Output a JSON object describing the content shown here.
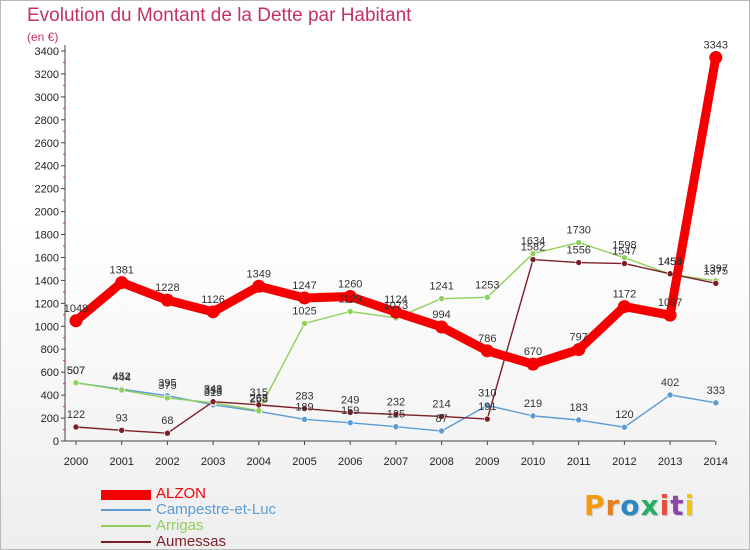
{
  "header": {
    "title": "Evolution du Montant de la Dette par Habitant",
    "subtitle": "(en €)"
  },
  "logo": {
    "text": "Proxiti",
    "letter_colors": [
      "#f39c12",
      "#e67e22",
      "#2e86c1",
      "#27ae60",
      "#e74c3c",
      "#8e44ad",
      "#f1c40f"
    ]
  },
  "chart_data": {
    "type": "line",
    "title": "Evolution du Montant de la Dette par Habitant",
    "subtitle": "(en €)",
    "x": [
      "2000",
      "2001",
      "2002",
      "2003",
      "2004",
      "2005",
      "2006",
      "2007",
      "2008",
      "2009",
      "2010",
      "2011",
      "2012",
      "2013",
      "2014"
    ],
    "ylim": [
      0,
      3400
    ],
    "yticks": [
      0,
      200,
      400,
      600,
      800,
      1000,
      1200,
      1400,
      1600,
      1800,
      2000,
      2200,
      2400,
      2600,
      2800,
      3000,
      3200,
      3400
    ],
    "grid": false,
    "legend_position": "bottom-left",
    "series": [
      {
        "name": "Campestre-et-Luc",
        "color": "#5b9bd5",
        "values": [
          507,
          452,
          395,
          315,
          258,
          189,
          159,
          125,
          87,
          310,
          219,
          183,
          120,
          402,
          333
        ],
        "labels": [
          "507",
          "452",
          "395",
          "315",
          "258",
          "189",
          "159",
          "125",
          "87",
          "310",
          "219",
          "183",
          "120",
          "402",
          "333"
        ]
      },
      {
        "name": "Arrigas",
        "color": "#8fd05a",
        "values": [
          507,
          444,
          375,
          333,
          265,
          1025,
          1129,
          1073,
          1241,
          1253,
          1634,
          1730,
          1598,
          1454,
          1397
        ],
        "labels": [
          "507",
          "444",
          "375",
          "333",
          "265",
          "1025",
          "1129",
          "1073",
          "1241",
          "1253",
          "1634",
          "1730",
          "1598",
          "1454",
          "1397"
        ]
      },
      {
        "name": "Aumessas",
        "color": "#7b1f26",
        "values": [
          122,
          93,
          68,
          343,
          315,
          283,
          249,
          232,
          214,
          191,
          1582,
          1556,
          1547,
          1458,
          1375
        ],
        "labels": [
          "122",
          "93",
          "68",
          "343",
          "315",
          "283",
          "249",
          "232",
          "214",
          "191",
          "1582",
          "1556",
          "1547",
          "1458",
          "1375"
        ]
      },
      {
        "name": "ALZON",
        "color": "#f40000",
        "values": [
          1048,
          1381,
          1228,
          1126,
          1349,
          1247,
          1260,
          1124,
          994,
          786,
          670,
          797,
          1172,
          1097,
          3343
        ],
        "labels": [
          "1048",
          "1381",
          "1228",
          "1126",
          "1349",
          "1247",
          "1260",
          "1124",
          "994",
          "786",
          "670",
          "797",
          "1172",
          "1097",
          "3343"
        ]
      }
    ]
  },
  "legend": {
    "items": [
      {
        "label": "ALZON",
        "color": "#f40000"
      },
      {
        "label": "Campestre-et-Luc",
        "color": "#5b9bd5"
      },
      {
        "label": "Arrigas",
        "color": "#8fd05a"
      },
      {
        "label": "Aumessas",
        "color": "#7b1f26"
      }
    ]
  }
}
